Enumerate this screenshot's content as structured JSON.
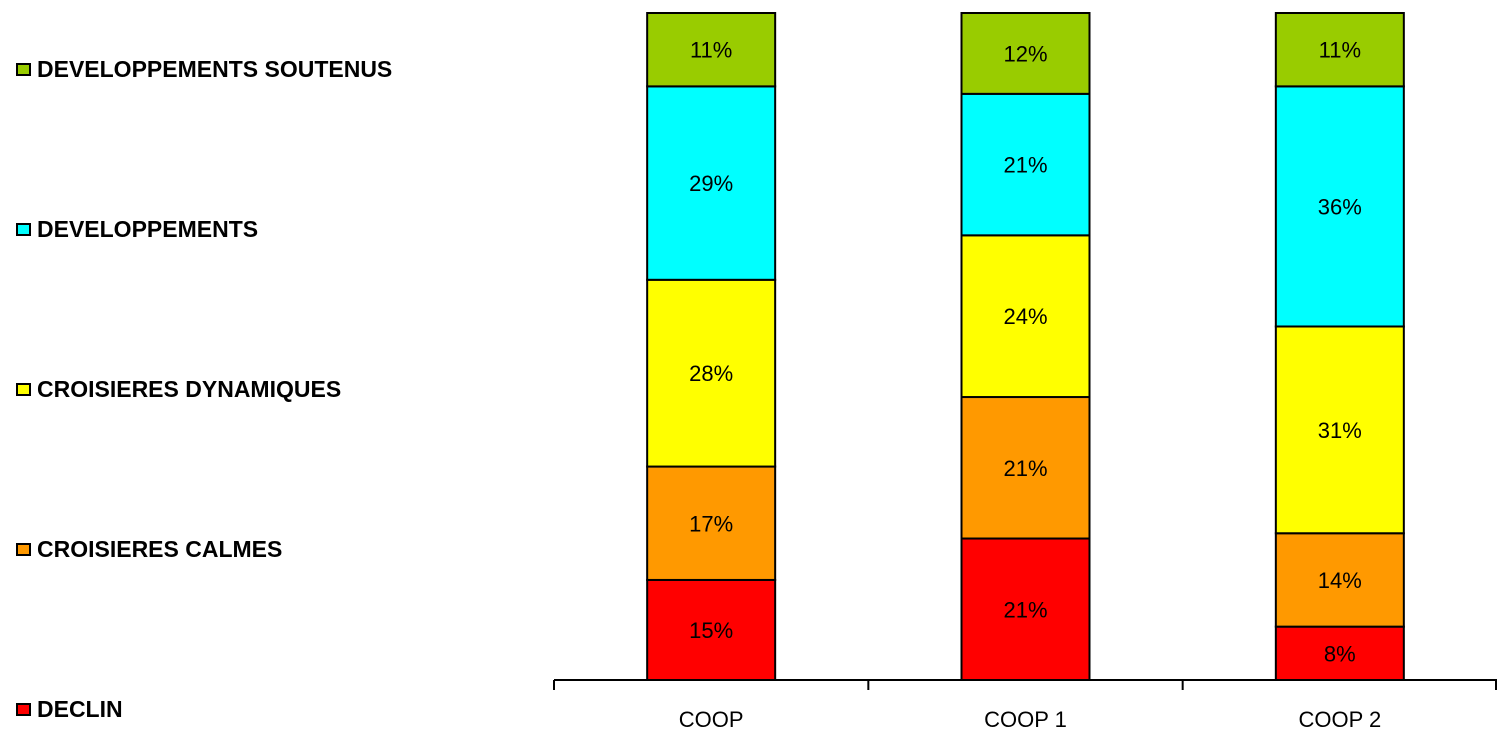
{
  "chart_data": {
    "type": "bar",
    "stacked": true,
    "normalized_percent": true,
    "categories": [
      "COOP",
      "COOP 1",
      "COOP 2"
    ],
    "series": [
      {
        "name": "DECLIN",
        "color": "#ff0000",
        "values": [
          15,
          21,
          8
        ],
        "labels": [
          "15%",
          "21%",
          "8%"
        ]
      },
      {
        "name": "CROISIERES CALMES",
        "color": "#ff9900",
        "values": [
          17,
          21,
          14
        ],
        "labels": [
          "17%",
          "21%",
          "14%"
        ]
      },
      {
        "name": "CROISIERES DYNAMIQUES",
        "color": "#ffff00",
        "values": [
          28,
          24,
          31
        ],
        "labels": [
          "28%",
          "24%",
          "31%"
        ]
      },
      {
        "name": "DEVELOPPEMENTS",
        "color": "#00ffff",
        "values": [
          29,
          21,
          36
        ],
        "labels": [
          "29%",
          "21%",
          "36%"
        ]
      },
      {
        "name": "DEVELOPPEMENTS SOUTENUS",
        "color": "#99cc00",
        "values": [
          11,
          12,
          11
        ],
        "labels": [
          "11%",
          "12%",
          "11%"
        ]
      }
    ],
    "legend": {
      "position": "left",
      "order": [
        "DEVELOPPEMENTS SOUTENUS",
        "DEVELOPPEMENTS",
        "CROISIERES DYNAMIQUES",
        "CROISIERES CALMES",
        "DECLIN"
      ]
    },
    "grid": false,
    "title": "",
    "xlabel": "",
    "ylabel": ""
  }
}
